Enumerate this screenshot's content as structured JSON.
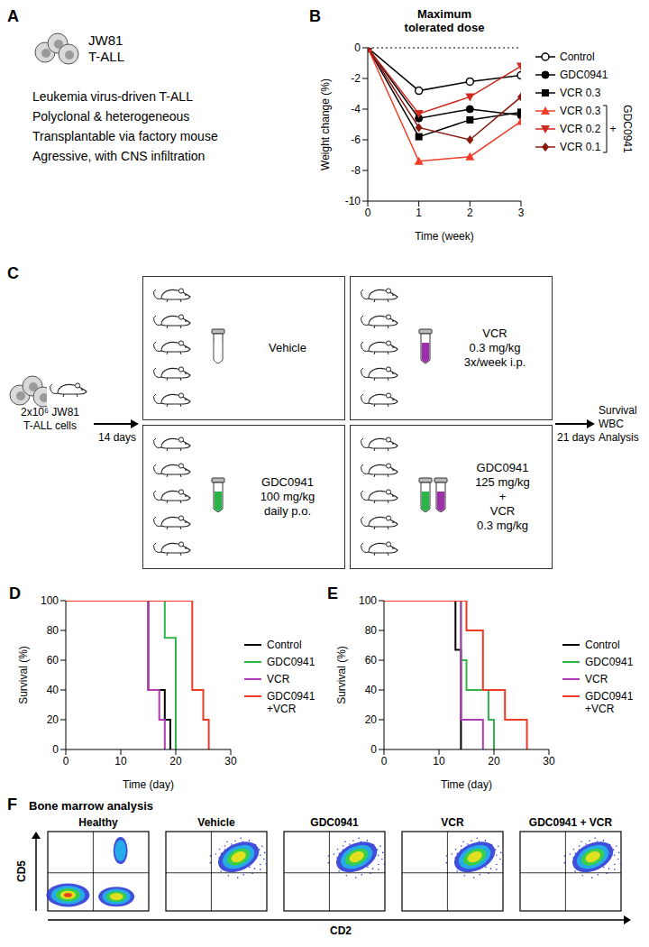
{
  "panel_A": {
    "panel_label": "A",
    "cell_line": [
      "JW81",
      "T-ALL"
    ],
    "lines": [
      "Leukemia virus-driven T-ALL",
      "Polyclonal & heterogeneous",
      "Transplantable via factory mouse",
      "Agressive, with CNS infiltration"
    ]
  },
  "chart_data": [
    {
      "panel_label": "B",
      "type": "line",
      "title": "Maximum tolerated dose",
      "x_label": "Time (week)",
      "y_label": "Weight change (%)",
      "x": [
        0,
        1,
        2,
        3
      ],
      "xlim": [
        0,
        3
      ],
      "xticks": [
        0,
        1,
        2,
        3
      ],
      "ylim": [
        -10,
        0
      ],
      "yticks": [
        -10,
        -8,
        -6,
        -4,
        -2,
        0
      ],
      "legend": "right",
      "annotations": [
        "+",
        "GDC0941"
      ],
      "series": [
        {
          "name": "Control",
          "color": "#000000",
          "marker": "circle_open",
          "values": [
            0,
            -2.8,
            -2.2,
            -1.8
          ]
        },
        {
          "name": "GDC0941",
          "color": "#000000",
          "marker": "circle",
          "values": [
            0,
            -4.6,
            -4.0,
            -4.4
          ]
        },
        {
          "name": "VCR 0.3",
          "color": "#000000",
          "marker": "square",
          "values": [
            0,
            -5.8,
            -4.7,
            -4.2
          ]
        },
        {
          "name": "VCR 0.3",
          "color": "#f03c28",
          "marker": "triangle_up",
          "values": [
            0,
            -7.4,
            -7.1,
            -4.8
          ]
        },
        {
          "name": "VCR 0.2",
          "color": "#d0281e",
          "marker": "triangle_down",
          "values": [
            0,
            -4.3,
            -3.2,
            -1.2
          ]
        },
        {
          "name": "VCR 0.1",
          "color": "#8b1a12",
          "marker": "diamond",
          "values": [
            0,
            -5.2,
            -6.0,
            -3.2
          ]
        }
      ]
    },
    {
      "panel_label": "D",
      "type": "line",
      "line_style": "step",
      "x_label": "Time (day)",
      "y_label": "Survival (%)",
      "xlim": [
        0,
        30
      ],
      "xticks": [
        0,
        10,
        20,
        30
      ],
      "ylim": [
        0,
        100
      ],
      "yticks": [
        0,
        20,
        40,
        60,
        80,
        100
      ],
      "legend": "right",
      "series": [
        {
          "name": "Control",
          "color": "#000000",
          "x": [
            0,
            15,
            18,
            19
          ],
          "values": [
            100,
            40,
            20,
            0
          ]
        },
        {
          "name": "GDC0941",
          "color": "#33b44a",
          "x": [
            0,
            18,
            20
          ],
          "values": [
            100,
            75,
            0
          ]
        },
        {
          "name": "VCR",
          "color": "#b23bb5",
          "x": [
            0,
            15,
            17,
            18
          ],
          "values": [
            100,
            40,
            20,
            0
          ]
        },
        {
          "name": "GDC0941 +VCR",
          "color": "#ee3b24",
          "x": [
            0,
            23,
            25,
            26
          ],
          "values": [
            100,
            40,
            20,
            0
          ]
        }
      ]
    },
    {
      "panel_label": "E",
      "type": "line",
      "line_style": "step",
      "x_label": "Time (day)",
      "y_label": "Survival (%)",
      "xlim": [
        0,
        30
      ],
      "xticks": [
        0,
        10,
        20,
        30
      ],
      "ylim": [
        0,
        100
      ],
      "yticks": [
        0,
        20,
        40,
        60,
        80,
        100
      ],
      "legend": "right",
      "series": [
        {
          "name": "Control",
          "color": "#000000",
          "x": [
            0,
            13,
            14
          ],
          "values": [
            100,
            67,
            0
          ]
        },
        {
          "name": "GDC0941",
          "color": "#33b44a",
          "x": [
            0,
            14,
            15,
            19,
            20
          ],
          "values": [
            100,
            60,
            40,
            20,
            0
          ]
        },
        {
          "name": "VCR",
          "color": "#b23bb5",
          "x": [
            0,
            14,
            18
          ],
          "values": [
            100,
            20,
            0
          ]
        },
        {
          "name": "GDC0941 +VCR",
          "color": "#ee3b24",
          "x": [
            0,
            15,
            18,
            22,
            26
          ],
          "values": [
            100,
            80,
            40,
            20,
            0
          ]
        }
      ]
    }
  ],
  "panel_C": {
    "panel_label": "C",
    "inoculum": [
      "2x10⁶ JW81",
      "T-ALL cells"
    ],
    "arrow_1": "14 days",
    "arrow_2": "21 days",
    "readout": [
      "Survival",
      "WBC",
      "Analysis"
    ],
    "groups": [
      {
        "lines": [
          "Vehicle"
        ],
        "colors": [
          "#ffffff"
        ]
      },
      {
        "lines": [
          "VCR",
          "0.3 mg/kg",
          "3x/week i.p."
        ],
        "colors": [
          "#9b30a8"
        ]
      },
      {
        "lines": [
          "GDC0941",
          "100 mg/kg",
          "daily p.o."
        ],
        "colors": [
          "#2db34a"
        ]
      },
      {
        "lines": [
          "GDC0941",
          "125 mg/kg",
          "+",
          "VCR",
          "0.3 mg/kg"
        ],
        "colors": [
          "#2db34a",
          "#9b30a8"
        ]
      }
    ]
  },
  "panel_F": {
    "panel_label": "F",
    "title": "Bone marrow analysis",
    "x_label": "CD2",
    "y_label": "CD5",
    "plots": [
      "Healthy",
      "Vehicle",
      "GDC0941",
      "VCR",
      "GDC0941 + VCR"
    ]
  }
}
